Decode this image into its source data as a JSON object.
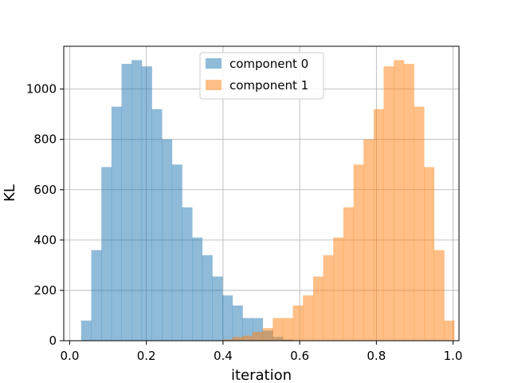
{
  "chart_data": {
    "type": "histogram",
    "xlabel": "iteration",
    "ylabel": "KL",
    "xlim": [
      -0.0155,
      1.0155
    ],
    "ylim": [
      0,
      1170
    ],
    "x_ticks": [
      0.0,
      0.2,
      0.4,
      0.6,
      0.8,
      1.0
    ],
    "x_tick_labels": [
      "0.0",
      "0.2",
      "0.4",
      "0.6",
      "0.8",
      "1.0"
    ],
    "y_ticks": [
      0,
      200,
      400,
      600,
      800,
      1000
    ],
    "y_tick_labels": [
      "0",
      "200",
      "400",
      "600",
      "800",
      "1000"
    ],
    "grid": true,
    "legend_position": "upper center",
    "series": [
      {
        "name": "component 0",
        "color": "#1f77b4",
        "alpha": 0.5,
        "bin_start": 0.03,
        "bin_width": 0.0263,
        "values": [
          80,
          360,
          690,
          930,
          1100,
          1115,
          1090,
          920,
          800,
          700,
          530,
          410,
          340,
          255,
          180,
          140,
          90,
          90,
          40,
          15,
          5,
          0,
          0,
          0,
          0,
          0,
          0,
          0,
          0,
          0,
          0,
          0,
          0,
          0,
          0
        ]
      },
      {
        "name": "component 1",
        "color": "#ff7f0e",
        "alpha": 0.5,
        "bin_start": 0.03,
        "bin_width": 0.0263,
        "values": [
          0,
          0,
          0,
          0,
          0,
          0,
          0,
          0,
          0,
          0,
          0,
          0,
          0,
          0,
          5,
          15,
          20,
          35,
          50,
          90,
          90,
          140,
          180,
          255,
          340,
          410,
          530,
          700,
          800,
          920,
          1090,
          1115,
          1100,
          930,
          690,
          360,
          80
        ]
      }
    ]
  }
}
